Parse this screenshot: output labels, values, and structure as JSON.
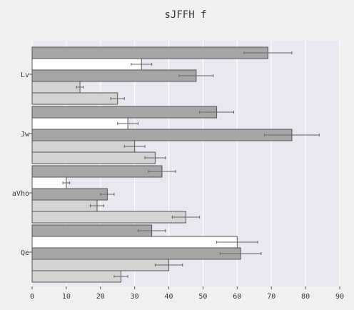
{
  "chart_data": {
    "type": "bar",
    "orientation": "horizontal",
    "title": "sJFFH f",
    "xlabel": "",
    "ylabel": "",
    "categories": [
      "Lv",
      "Jw",
      "aVho",
      "Qe"
    ],
    "xlim": [
      0,
      90
    ],
    "xticks": [
      0,
      10,
      20,
      30,
      40,
      50,
      60,
      70,
      80,
      90
    ],
    "grid": true,
    "series": [
      {
        "color": "#a6a6a6",
        "values": [
          69,
          54,
          38,
          35
        ],
        "errors": [
          7,
          5,
          4,
          4
        ]
      },
      {
        "color": "#ffffff",
        "values": [
          32,
          28,
          10,
          60
        ],
        "errors": [
          3,
          3,
          1,
          6
        ]
      },
      {
        "color": "#a6a6a6",
        "values": [
          48,
          76,
          22,
          61
        ],
        "errors": [
          5,
          8,
          2,
          6
        ]
      },
      {
        "color": "#d3d3d3",
        "values": [
          14,
          30,
          19,
          40
        ],
        "errors": [
          1,
          3,
          2,
          4
        ]
      },
      {
        "color": "#d3d3d3",
        "values": [
          25,
          36,
          45,
          26
        ],
        "errors": [
          2,
          3,
          4,
          2
        ]
      }
    ]
  },
  "colors": {
    "page_background": "#f0f0f0",
    "plot_background": "#e8e8f0",
    "grid": "#ffffff",
    "bar_edge": "#555555",
    "errorbar": "#666666"
  }
}
